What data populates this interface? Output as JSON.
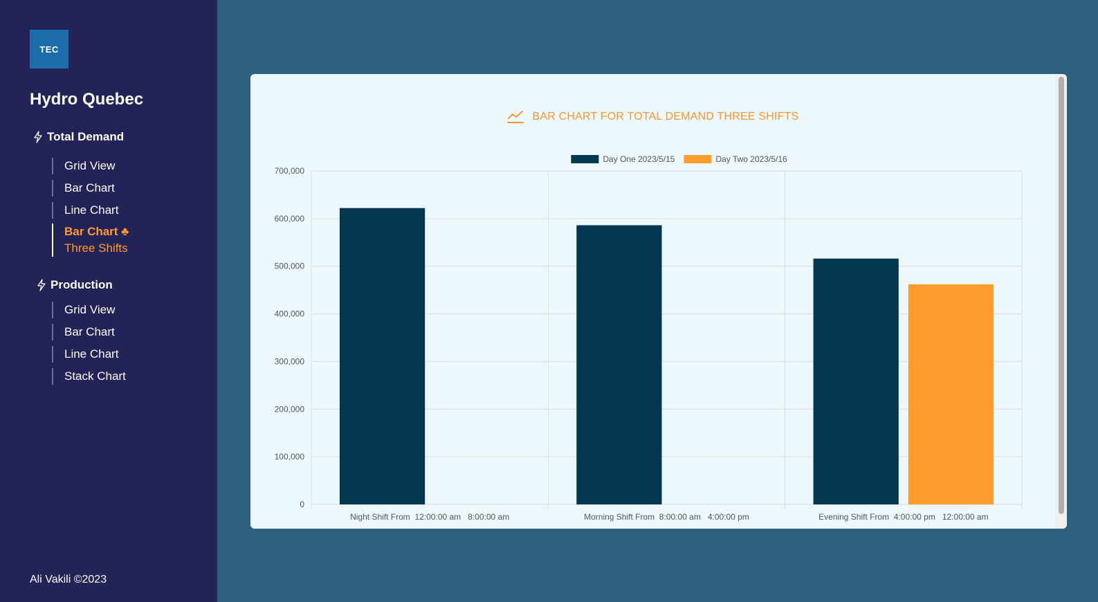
{
  "sidebar": {
    "logo_text": "TEC",
    "brand": "Hydro Quebec",
    "sections": [
      {
        "title": "Total Demand",
        "items": [
          {
            "label": "Grid View"
          },
          {
            "label": "Bar Chart"
          },
          {
            "label": "Line Chart"
          },
          {
            "label": "Bar Chart ♣",
            "sub": "Three Shifts",
            "active": true
          }
        ]
      },
      {
        "title": "Production",
        "items": [
          {
            "label": "Grid View"
          },
          {
            "label": "Bar Chart"
          },
          {
            "label": "Line Chart"
          },
          {
            "label": "Stack Chart"
          }
        ]
      }
    ],
    "footer": "Ali Vakili ©2023"
  },
  "card": {
    "title": "BAR CHART FOR TOTAL DEMAND THREE SHIFTS"
  },
  "chart_data": {
    "type": "bar",
    "title": "BAR CHART FOR TOTAL DEMAND THREE SHIFTS",
    "categories": [
      "Night Shift From  12:00:00 am   8:00:00 am",
      "Morning Shift From  8:00:00 am   4:00:00 pm",
      "Evening Shift From  4:00:00 pm   12:00:00 am"
    ],
    "series": [
      {
        "name": "Day One 2023/5/15",
        "color": "#01374f",
        "values": [
          622000,
          586000,
          516000
        ]
      },
      {
        "name": "Day Two 2023/5/16",
        "color": "#ff9c2e",
        "values": [
          0,
          0,
          462000
        ]
      }
    ],
    "ylim": [
      0,
      700000
    ],
    "yticks": [
      0,
      100000,
      200000,
      300000,
      400000,
      500000,
      600000,
      700000
    ],
    "ytick_labels": [
      "0",
      "100,000",
      "200,000",
      "300,000",
      "400,000",
      "500,000",
      "600,000",
      "700,000"
    ],
    "grid": true,
    "legend_position": "top"
  }
}
